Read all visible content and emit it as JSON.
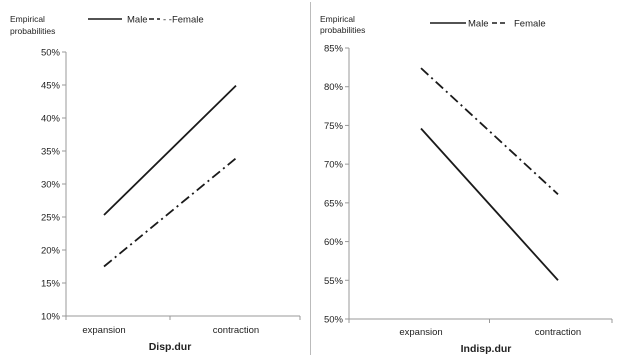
{
  "chart_data": [
    {
      "type": "line",
      "ylabel_lines": [
        "Empirical",
        "probabilities"
      ],
      "xlabel": "Disp.dur",
      "categories": [
        "expansion",
        "contraction"
      ],
      "ylim": [
        0.1,
        0.5
      ],
      "yticks": [
        "10%",
        "15%",
        "20%",
        "25%",
        "30%",
        "35%",
        "40%",
        "45%",
        "50%"
      ],
      "grid": false,
      "legend_position": "top",
      "series": [
        {
          "name": "Male",
          "style": "solid",
          "values": [
            0.253,
            0.449
          ]
        },
        {
          "name": "Female",
          "style": "dash-dot",
          "values": [
            0.175,
            0.339
          ]
        }
      ]
    },
    {
      "type": "line",
      "ylabel_lines": [
        "Empirical",
        "probabilities"
      ],
      "xlabel": "Indisp.dur",
      "categories": [
        "expansion",
        "contraction"
      ],
      "ylim": [
        0.5,
        0.85
      ],
      "yticks": [
        "50%",
        "55%",
        "60%",
        "65%",
        "70%",
        "75%",
        "80%",
        "85%"
      ],
      "grid": false,
      "legend_position": "top",
      "series": [
        {
          "name": "Male",
          "style": "solid",
          "values": [
            0.746,
            0.55
          ]
        },
        {
          "name": "Female",
          "style": "dash-dot",
          "values": [
            0.824,
            0.661
          ]
        }
      ]
    }
  ],
  "legends": [
    {
      "male": "Male",
      "female": "- -Female"
    },
    {
      "male": "Male",
      "female": "Female"
    }
  ],
  "colors": {
    "line": "#1a1a1a",
    "axis": "#999999",
    "background": "#ffffff"
  }
}
